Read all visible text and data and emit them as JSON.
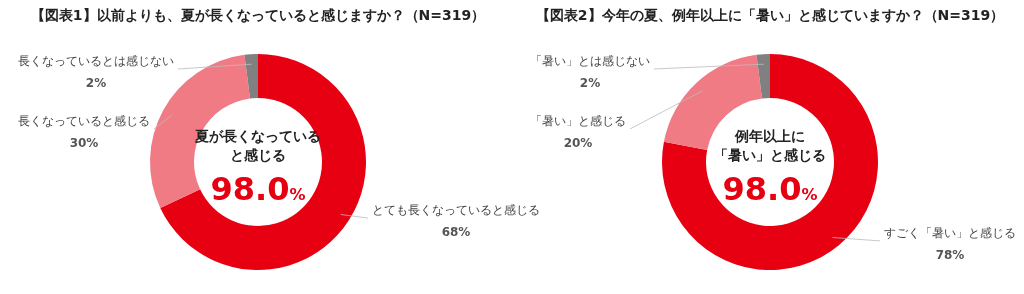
{
  "chart_data": [
    {
      "type": "donut",
      "title": "【図表1】以前よりも、夏が長くなっていると感じますか？（N=319）",
      "categories": [
        "とても長くなっていると感じる",
        "長くなっていると感じる",
        "長くなっているとは感じない"
      ],
      "values": [
        68,
        30,
        2
      ],
      "value_labels": [
        "68%",
        "30%",
        "2%"
      ],
      "colors": [
        "#e60012",
        "#f07b85",
        "#808080"
      ],
      "annotations": [
        "夏が長くなっている",
        "と感じる",
        "98.0%"
      ]
    },
    {
      "type": "donut",
      "title": "【図表2】今年の夏、例年以上に「暑い」と感じていますか？（N=319）",
      "categories": [
        "すごく「暑い」と感じる",
        "「暑い」と感じる",
        "「暑い」とは感じない"
      ],
      "values": [
        78,
        20,
        2
      ],
      "value_labels": [
        "78%",
        "20%",
        "2%"
      ],
      "colors": [
        "#e60012",
        "#f07b85",
        "#808080"
      ],
      "annotations": [
        "例年以上に",
        "「暑い」と感じる",
        "98.0%"
      ]
    }
  ]
}
